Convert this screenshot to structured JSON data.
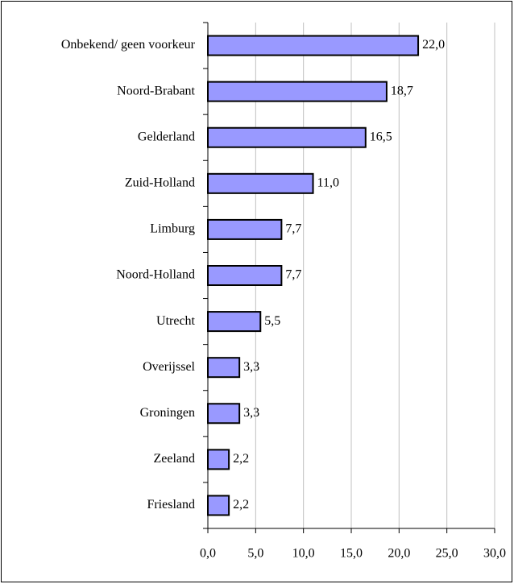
{
  "chart_data": {
    "type": "barh",
    "categories": [
      "Onbekend/ geen voorkeur",
      "Noord-Brabant",
      "Gelderland",
      "Zuid-Holland",
      "Limburg",
      "Noord-Holland",
      "Utrecht",
      "Overijssel",
      "Groningen",
      "Zeeland",
      "Friesland"
    ],
    "values": [
      22.0,
      18.7,
      16.5,
      11.0,
      7.7,
      7.7,
      5.5,
      3.3,
      3.3,
      2.2,
      2.2
    ],
    "value_labels": [
      "22,0",
      "18,7",
      "16,5",
      "11,0",
      "7,7",
      "7,7",
      "5,5",
      "3,3",
      "3,3",
      "2,2",
      "2,2"
    ],
    "color": "#9999ff",
    "xlim": [
      0,
      30
    ],
    "xticks": [
      {
        "value": 0,
        "label": "0,0"
      },
      {
        "value": 5,
        "label": "5,0"
      },
      {
        "value": 10,
        "label": "10,0"
      },
      {
        "value": 15,
        "label": "15,0"
      },
      {
        "value": 20,
        "label": "20,0"
      },
      {
        "value": 25,
        "label": "25,0"
      },
      {
        "value": 30,
        "label": "30,0"
      }
    ],
    "grid": true
  }
}
